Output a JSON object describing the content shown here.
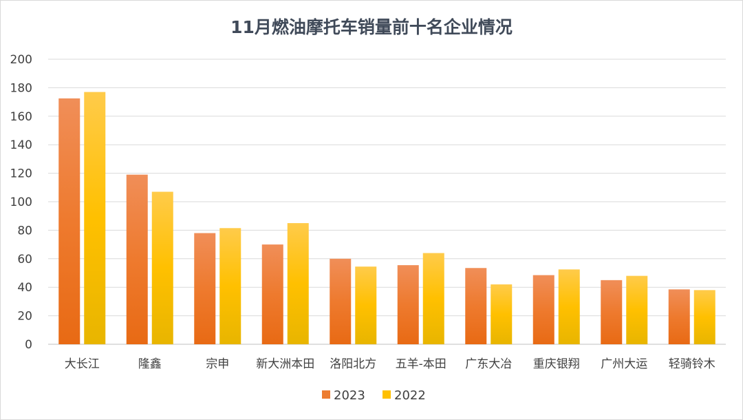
{
  "chart_data": {
    "type": "bar",
    "title": "11月燃油摩托车销量前十名企业情况",
    "categories": [
      "大长江",
      "隆鑫",
      "宗申",
      "新大洲本田",
      "洛阳北方",
      "五羊-本田",
      "广东大冶",
      "重庆银翔",
      "广州大运",
      "轻骑铃木"
    ],
    "series": [
      {
        "name": "2023",
        "values": [
          172.5,
          119,
          78,
          70,
          60,
          55.5,
          53.5,
          48.5,
          45,
          38.5
        ],
        "color": "#ED7D31"
      },
      {
        "name": "2022",
        "values": [
          177,
          107,
          81.5,
          85,
          54.5,
          64,
          42,
          52.5,
          48,
          38
        ],
        "color": "#FFC000"
      }
    ],
    "ylim": [
      0,
      200
    ],
    "yticks": [
      "0",
      "20",
      "40",
      "60",
      "80",
      "100",
      "120",
      "140",
      "160",
      "180",
      "200"
    ],
    "grid": true,
    "legend": "bottom",
    "xlabel": "",
    "ylabel": ""
  }
}
